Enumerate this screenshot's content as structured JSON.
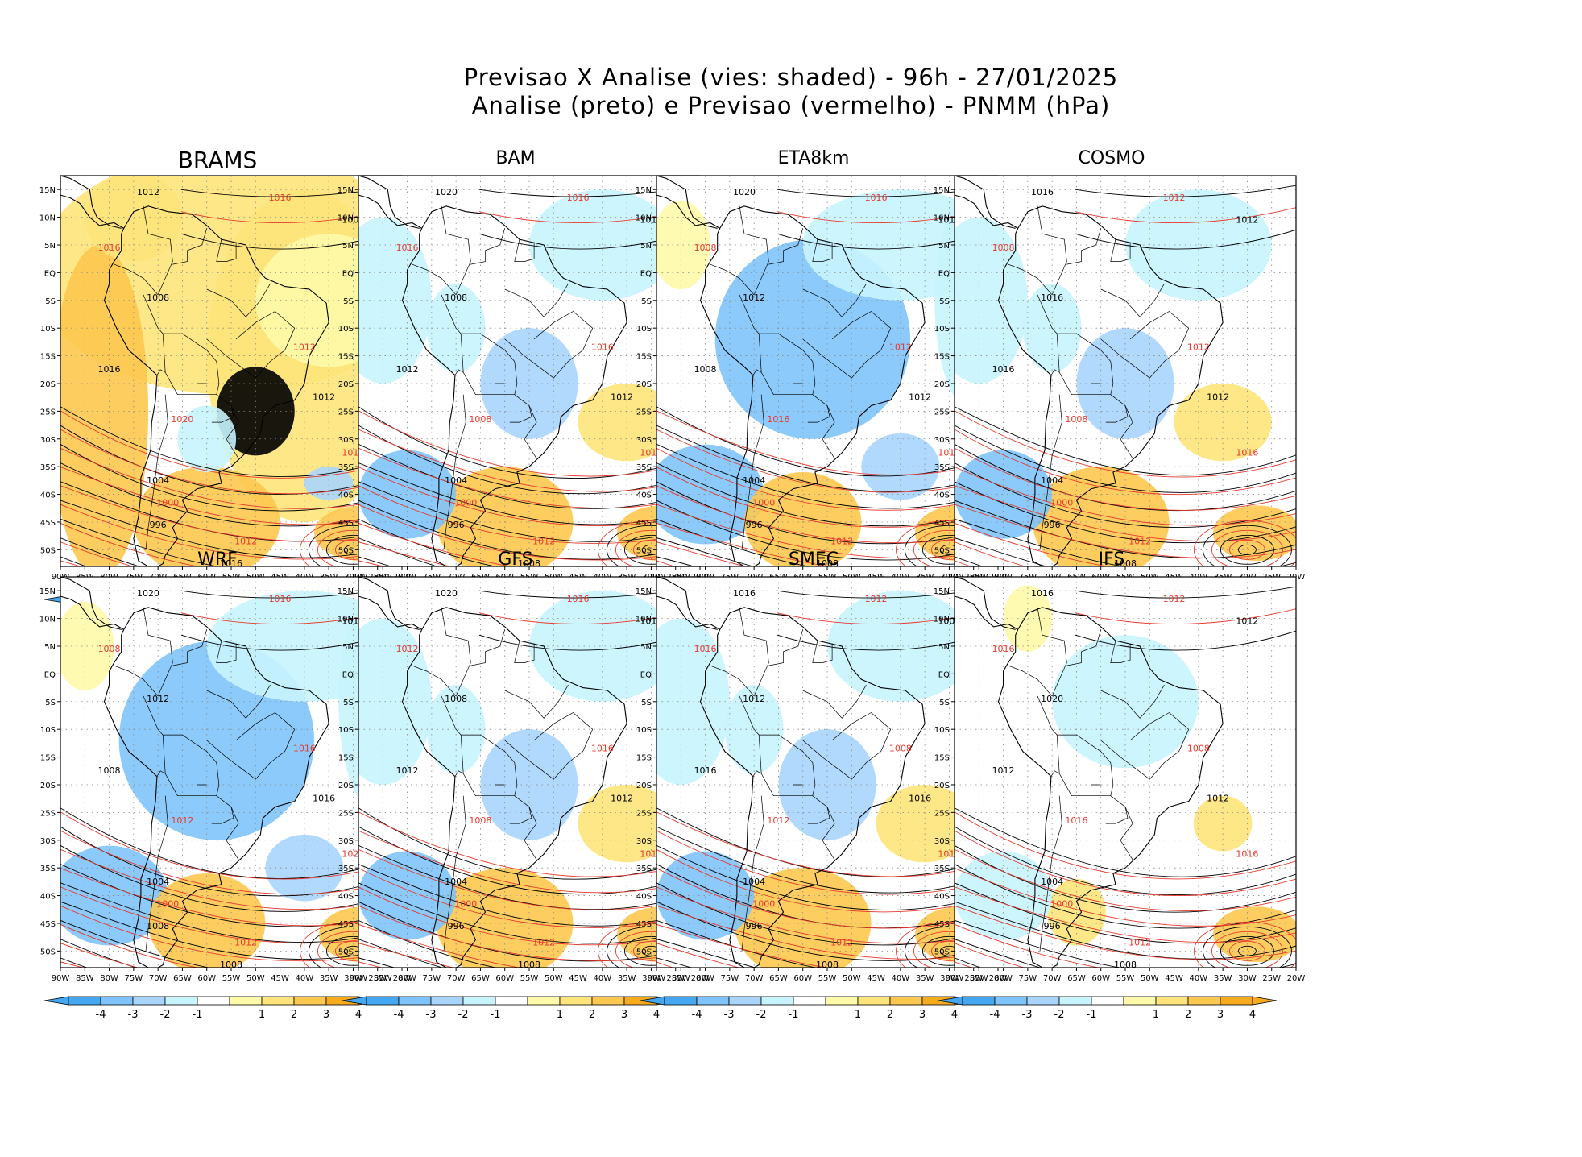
{
  "header": {
    "title_line1": "Previsao X Analise (vies: shaded) - 96h - 27/01/2025",
    "title_line2": "Analise (preto) e Previsao (vermelho) - PNMM (hPa)"
  },
  "colors": {
    "bias_pos": [
      "#fef9a8",
      "#fee47a",
      "#fdc84f",
      "#f6ab1e"
    ],
    "bias_neg": [
      "#c8f4fe",
      "#a9d5fd",
      "#7ec4fb",
      "#46a7f1"
    ],
    "analysis_contour": "#000000",
    "forecast_contour": "#e8392e",
    "coastline": "#000000"
  },
  "axes": {
    "lat_labels": [
      "15N",
      "10N",
      "5N",
      "EQ",
      "5S",
      "10S",
      "15S",
      "20S",
      "25S",
      "30S",
      "35S",
      "40S",
      "45S",
      "50S"
    ],
    "lon_labels": [
      "90W",
      "85W",
      "80W",
      "75W",
      "70W",
      "65W",
      "60W",
      "55W",
      "50W",
      "45W",
      "40W",
      "35W",
      "30W",
      "25W",
      "20W"
    ]
  },
  "colorbar": {
    "ticks": [
      "-4",
      "-3",
      "-2",
      "-1",
      "1",
      "2",
      "3",
      "4"
    ]
  },
  "panels": [
    {
      "name": "BRAMS",
      "style": "warm",
      "contours": [
        "1012",
        "1016",
        "1008",
        "1016",
        "1008",
        "1012",
        "1016",
        "1020",
        "1012",
        "1016",
        "1004",
        "1000",
        "996",
        "1012",
        "1016"
      ]
    },
    {
      "name": "BAM",
      "style": "mixed",
      "contours": [
        "1020",
        "1016",
        "1012",
        "1016",
        "1008",
        "1016",
        "1012",
        "1008",
        "1012",
        "1016",
        "1004",
        "1000",
        "996",
        "1012",
        "1008"
      ]
    },
    {
      "name": "ETA8km",
      "style": "cool",
      "contours": [
        "1020",
        "1016",
        "1016",
        "1008",
        "1012",
        "1012",
        "1008",
        "1016",
        "1012",
        "1016",
        "1004",
        "1000",
        "996",
        "1012",
        "1008"
      ]
    },
    {
      "name": "COSMO",
      "style": "mixed",
      "contours": [
        "1016",
        "1012",
        "1012",
        "1008",
        "1016",
        "1012",
        "1016",
        "1008",
        "1012",
        "1016",
        "1004",
        "1000",
        "996",
        "1012",
        "1008"
      ]
    },
    {
      "name": "WRF",
      "style": "cool",
      "contours": [
        "1020",
        "1016",
        "1012",
        "1008",
        "1012",
        "1016",
        "1008",
        "1012",
        "1016",
        "1020",
        "1004",
        "1000",
        "1008",
        "1012",
        "1008"
      ]
    },
    {
      "name": "GFS",
      "style": "mixed",
      "contours": [
        "1020",
        "1016",
        "1012",
        "1012",
        "1008",
        "1016",
        "1012",
        "1008",
        "1012",
        "1016",
        "1004",
        "1000",
        "996",
        "1012",
        "1008"
      ]
    },
    {
      "name": "SMEC",
      "style": "mixed",
      "contours": [
        "1016",
        "1012",
        "1008",
        "1016",
        "1012",
        "1008",
        "1016",
        "1012",
        "1016",
        "1012",
        "1004",
        "1000",
        "996",
        "1012",
        "1008"
      ]
    },
    {
      "name": "IFS",
      "style": "mild",
      "contours": [
        "1016",
        "1012",
        "1012",
        "1016",
        "1020",
        "1008",
        "1012",
        "1016",
        "1012",
        "1016",
        "1004",
        "1000",
        "996",
        "1012",
        "1008"
      ]
    }
  ]
}
